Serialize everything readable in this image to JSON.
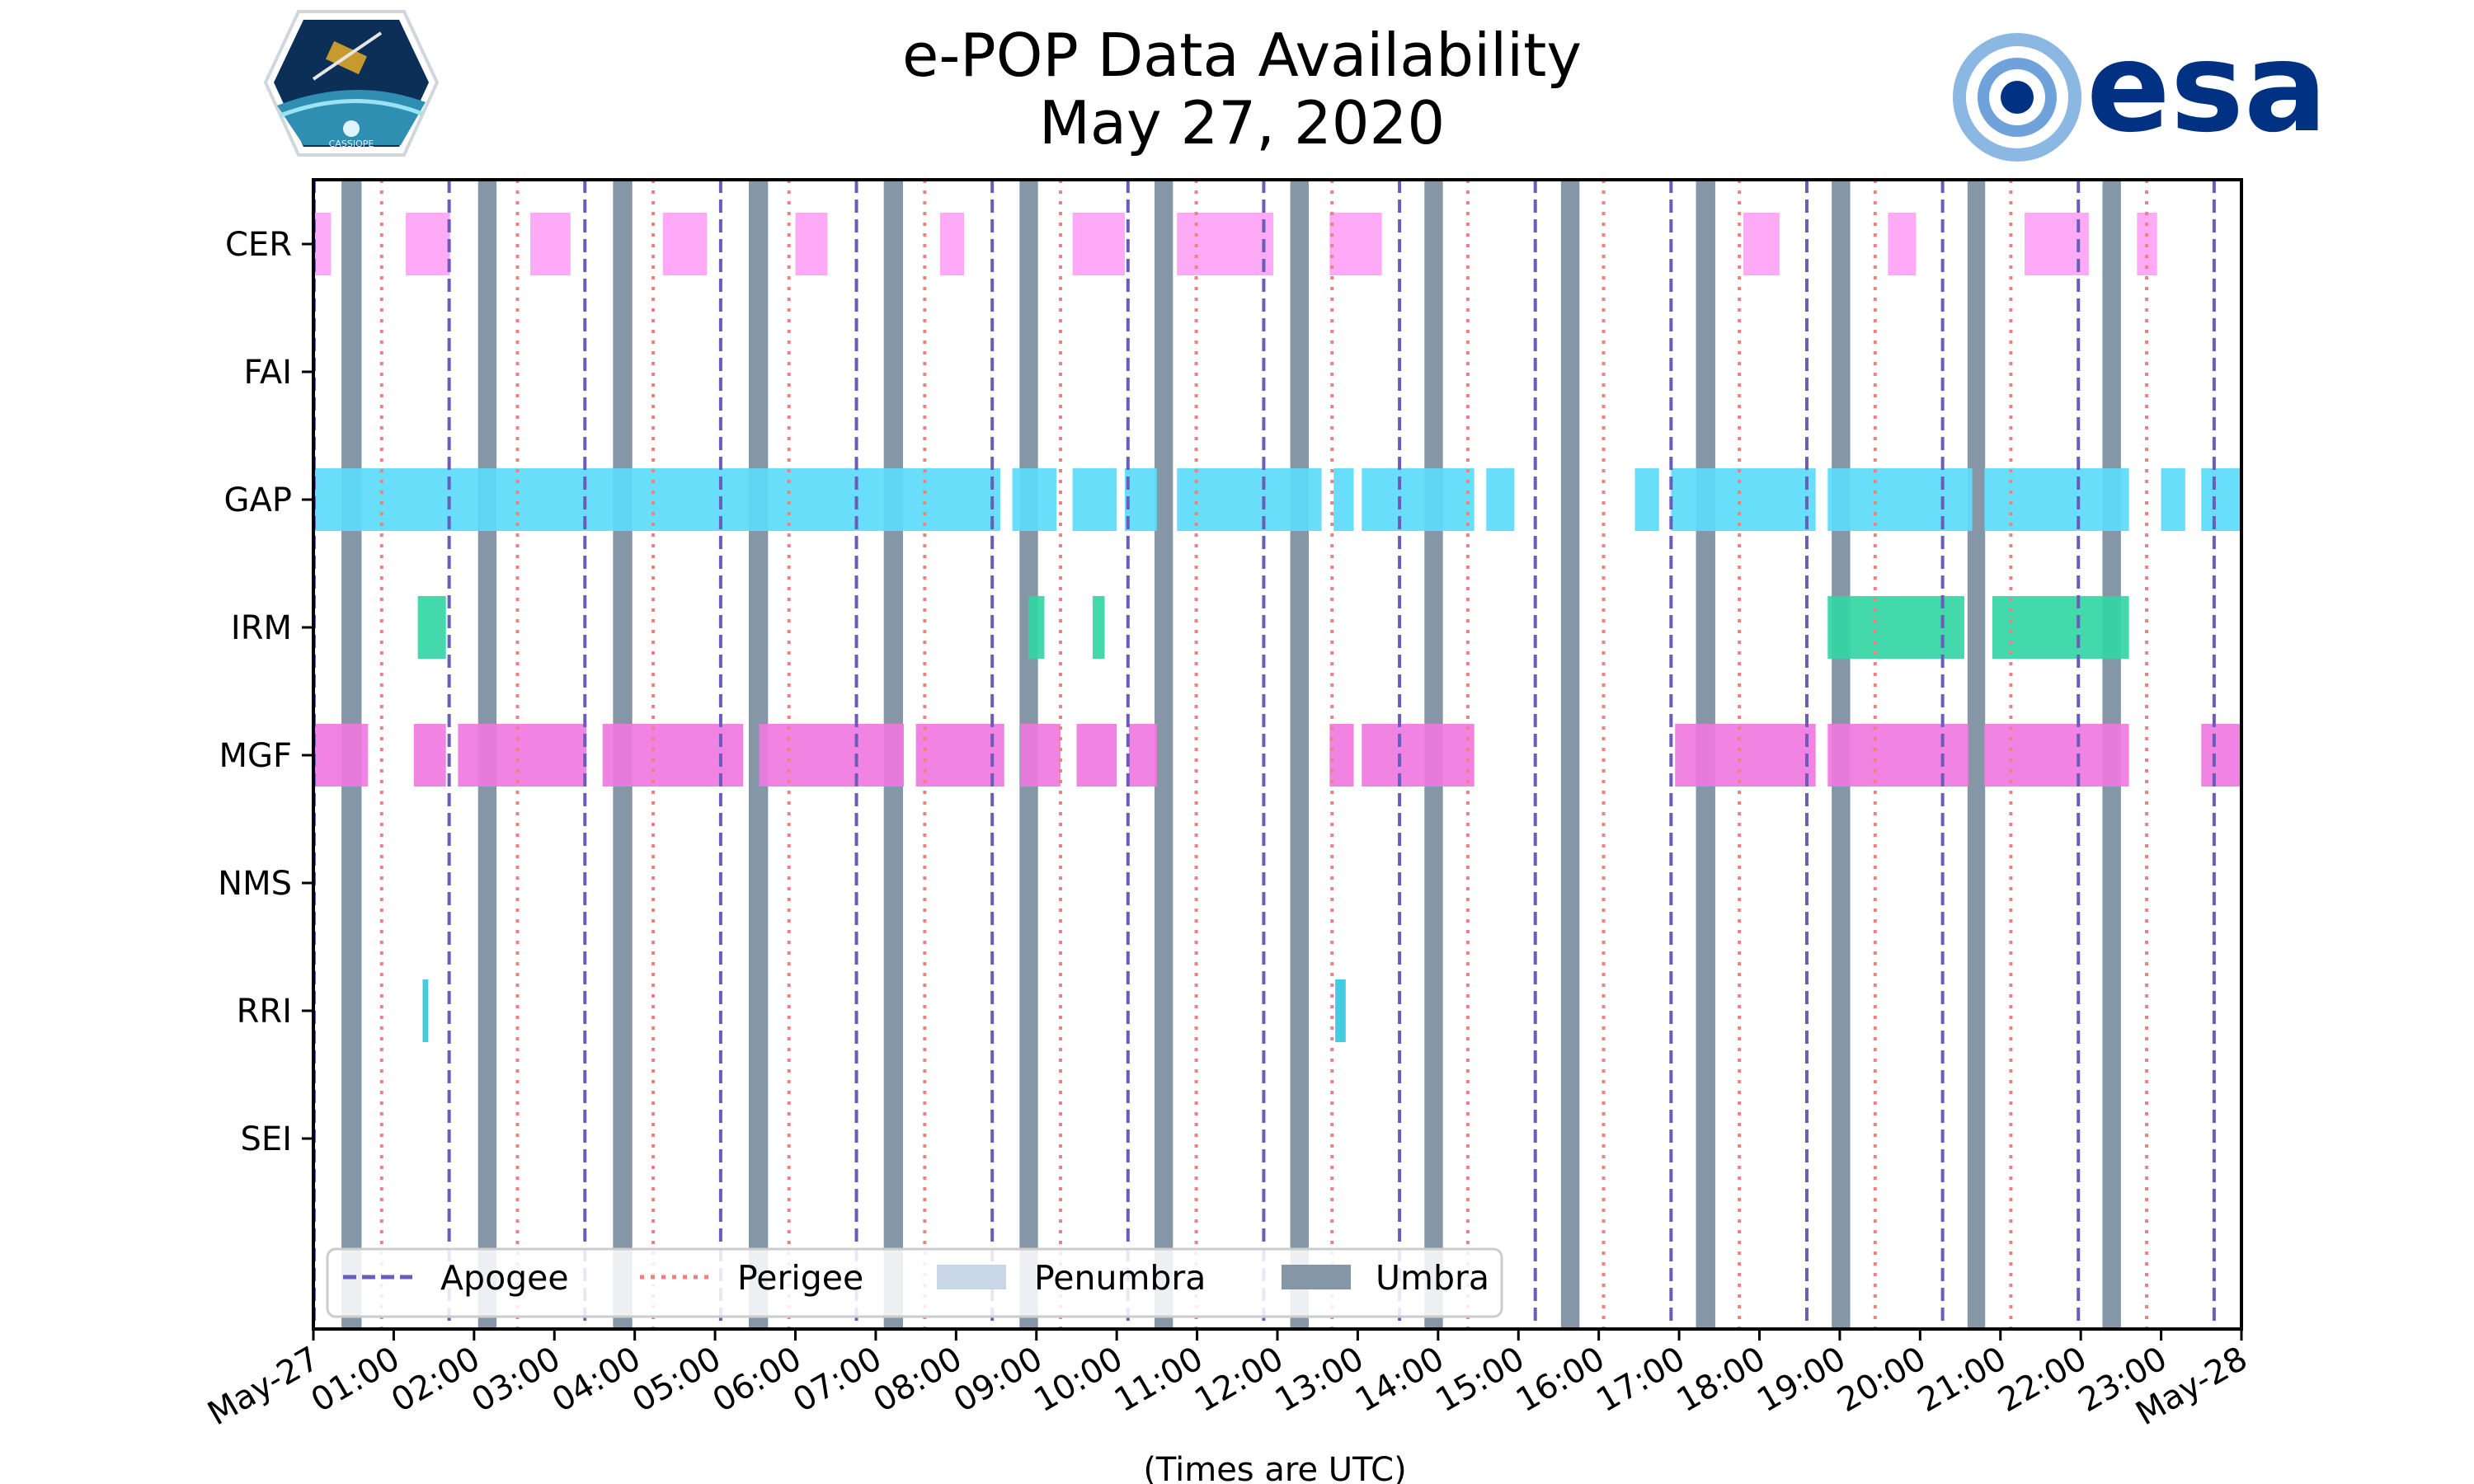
{
  "chart_data": {
    "type": "timeline",
    "title": "e-POP Data Availability",
    "subtitle": "May 27, 2020",
    "xlabel": "(Times are UTC)",
    "xlim": [
      0,
      24
    ],
    "x_tick_labels": [
      "May-27",
      "01:00",
      "02:00",
      "03:00",
      "04:00",
      "05:00",
      "06:00",
      "07:00",
      "08:00",
      "09:00",
      "10:00",
      "11:00",
      "12:00",
      "13:00",
      "14:00",
      "15:00",
      "16:00",
      "17:00",
      "18:00",
      "19:00",
      "20:00",
      "21:00",
      "22:00",
      "23:00",
      "May-28"
    ],
    "instruments": [
      "CER",
      "FAI",
      "GAP",
      "IRM",
      "MGF",
      "NMS",
      "RRI",
      "SEI"
    ],
    "availability": {
      "CER": [
        [
          0.0,
          0.22
        ],
        [
          1.15,
          1.7
        ],
        [
          2.7,
          3.2
        ],
        [
          4.35,
          4.9
        ],
        [
          6.0,
          6.4
        ],
        [
          7.8,
          8.1
        ],
        [
          9.45,
          10.1
        ],
        [
          10.75,
          11.95
        ],
        [
          12.65,
          13.3
        ],
        [
          17.8,
          18.25
        ],
        [
          19.6,
          19.95
        ],
        [
          21.3,
          22.1
        ],
        [
          22.7,
          22.95
        ]
      ],
      "FAI": [],
      "GAP": [
        [
          0.0,
          8.55
        ],
        [
          8.7,
          9.25
        ],
        [
          9.45,
          10.0
        ],
        [
          10.1,
          10.5
        ],
        [
          10.75,
          12.55
        ],
        [
          12.7,
          12.95
        ],
        [
          13.05,
          14.45
        ],
        [
          14.6,
          14.95
        ],
        [
          16.45,
          16.75
        ],
        [
          16.9,
          18.7
        ],
        [
          18.85,
          20.65
        ],
        [
          20.8,
          22.6
        ],
        [
          23.0,
          23.3
        ],
        [
          23.5,
          24.0
        ]
      ],
      "IRM": [
        [
          1.3,
          1.65
        ],
        [
          8.9,
          9.1
        ],
        [
          9.7,
          9.85
        ],
        [
          18.85,
          20.55
        ],
        [
          20.9,
          22.6
        ]
      ],
      "MGF": [
        [
          0.0,
          0.68
        ],
        [
          1.25,
          1.65
        ],
        [
          1.8,
          3.4
        ],
        [
          3.6,
          5.35
        ],
        [
          5.55,
          7.35
        ],
        [
          7.5,
          8.6
        ],
        [
          8.8,
          9.3
        ],
        [
          9.5,
          10.0
        ],
        [
          10.15,
          10.5
        ],
        [
          12.65,
          12.95
        ],
        [
          13.05,
          14.45
        ],
        [
          16.95,
          18.7
        ],
        [
          18.85,
          20.6
        ],
        [
          20.8,
          22.6
        ],
        [
          23.5,
          24.0
        ]
      ],
      "NMS": [],
      "RRI": [
        [
          1.36,
          1.43
        ],
        [
          12.72,
          12.85
        ]
      ],
      "SEI": []
    },
    "apogee_hours": [
      0.01,
      1.69,
      3.38,
      5.07,
      6.76,
      8.45,
      10.14,
      11.83,
      13.52,
      15.21,
      16.9,
      18.59,
      20.28,
      21.97,
      23.66
    ],
    "perigee_hours": [
      0.85,
      2.54,
      4.23,
      5.92,
      7.61,
      9.3,
      10.99,
      12.68,
      14.37,
      16.06,
      17.75,
      19.44,
      21.13,
      22.82
    ],
    "umbra_hours": [
      [
        0.35,
        0.6
      ],
      [
        2.05,
        2.28
      ],
      [
        3.73,
        3.97
      ],
      [
        5.42,
        5.66
      ],
      [
        7.1,
        7.34
      ],
      [
        8.79,
        9.02
      ],
      [
        10.47,
        10.7
      ],
      [
        12.16,
        12.39
      ],
      [
        13.83,
        14.06
      ],
      [
        15.53,
        15.76
      ],
      [
        17.21,
        17.45
      ],
      [
        18.9,
        19.13
      ],
      [
        20.59,
        20.81
      ],
      [
        22.27,
        22.5
      ]
    ],
    "legend": [
      "Apogee",
      "Perigee",
      "Penumbra",
      "Umbra"
    ],
    "legend_position": "lower-left",
    "colors": {
      "CER": "#ffa3f5",
      "GAP": "#5cdbfa",
      "IRM": "#33d6a3",
      "MGF": "#f078e0",
      "RRI": "#33c7e0",
      "apogee": "#6a5cbb",
      "perigee": "#f08080",
      "penumbra": "#c9d6e6",
      "umbra": "#8596a6"
    }
  }
}
